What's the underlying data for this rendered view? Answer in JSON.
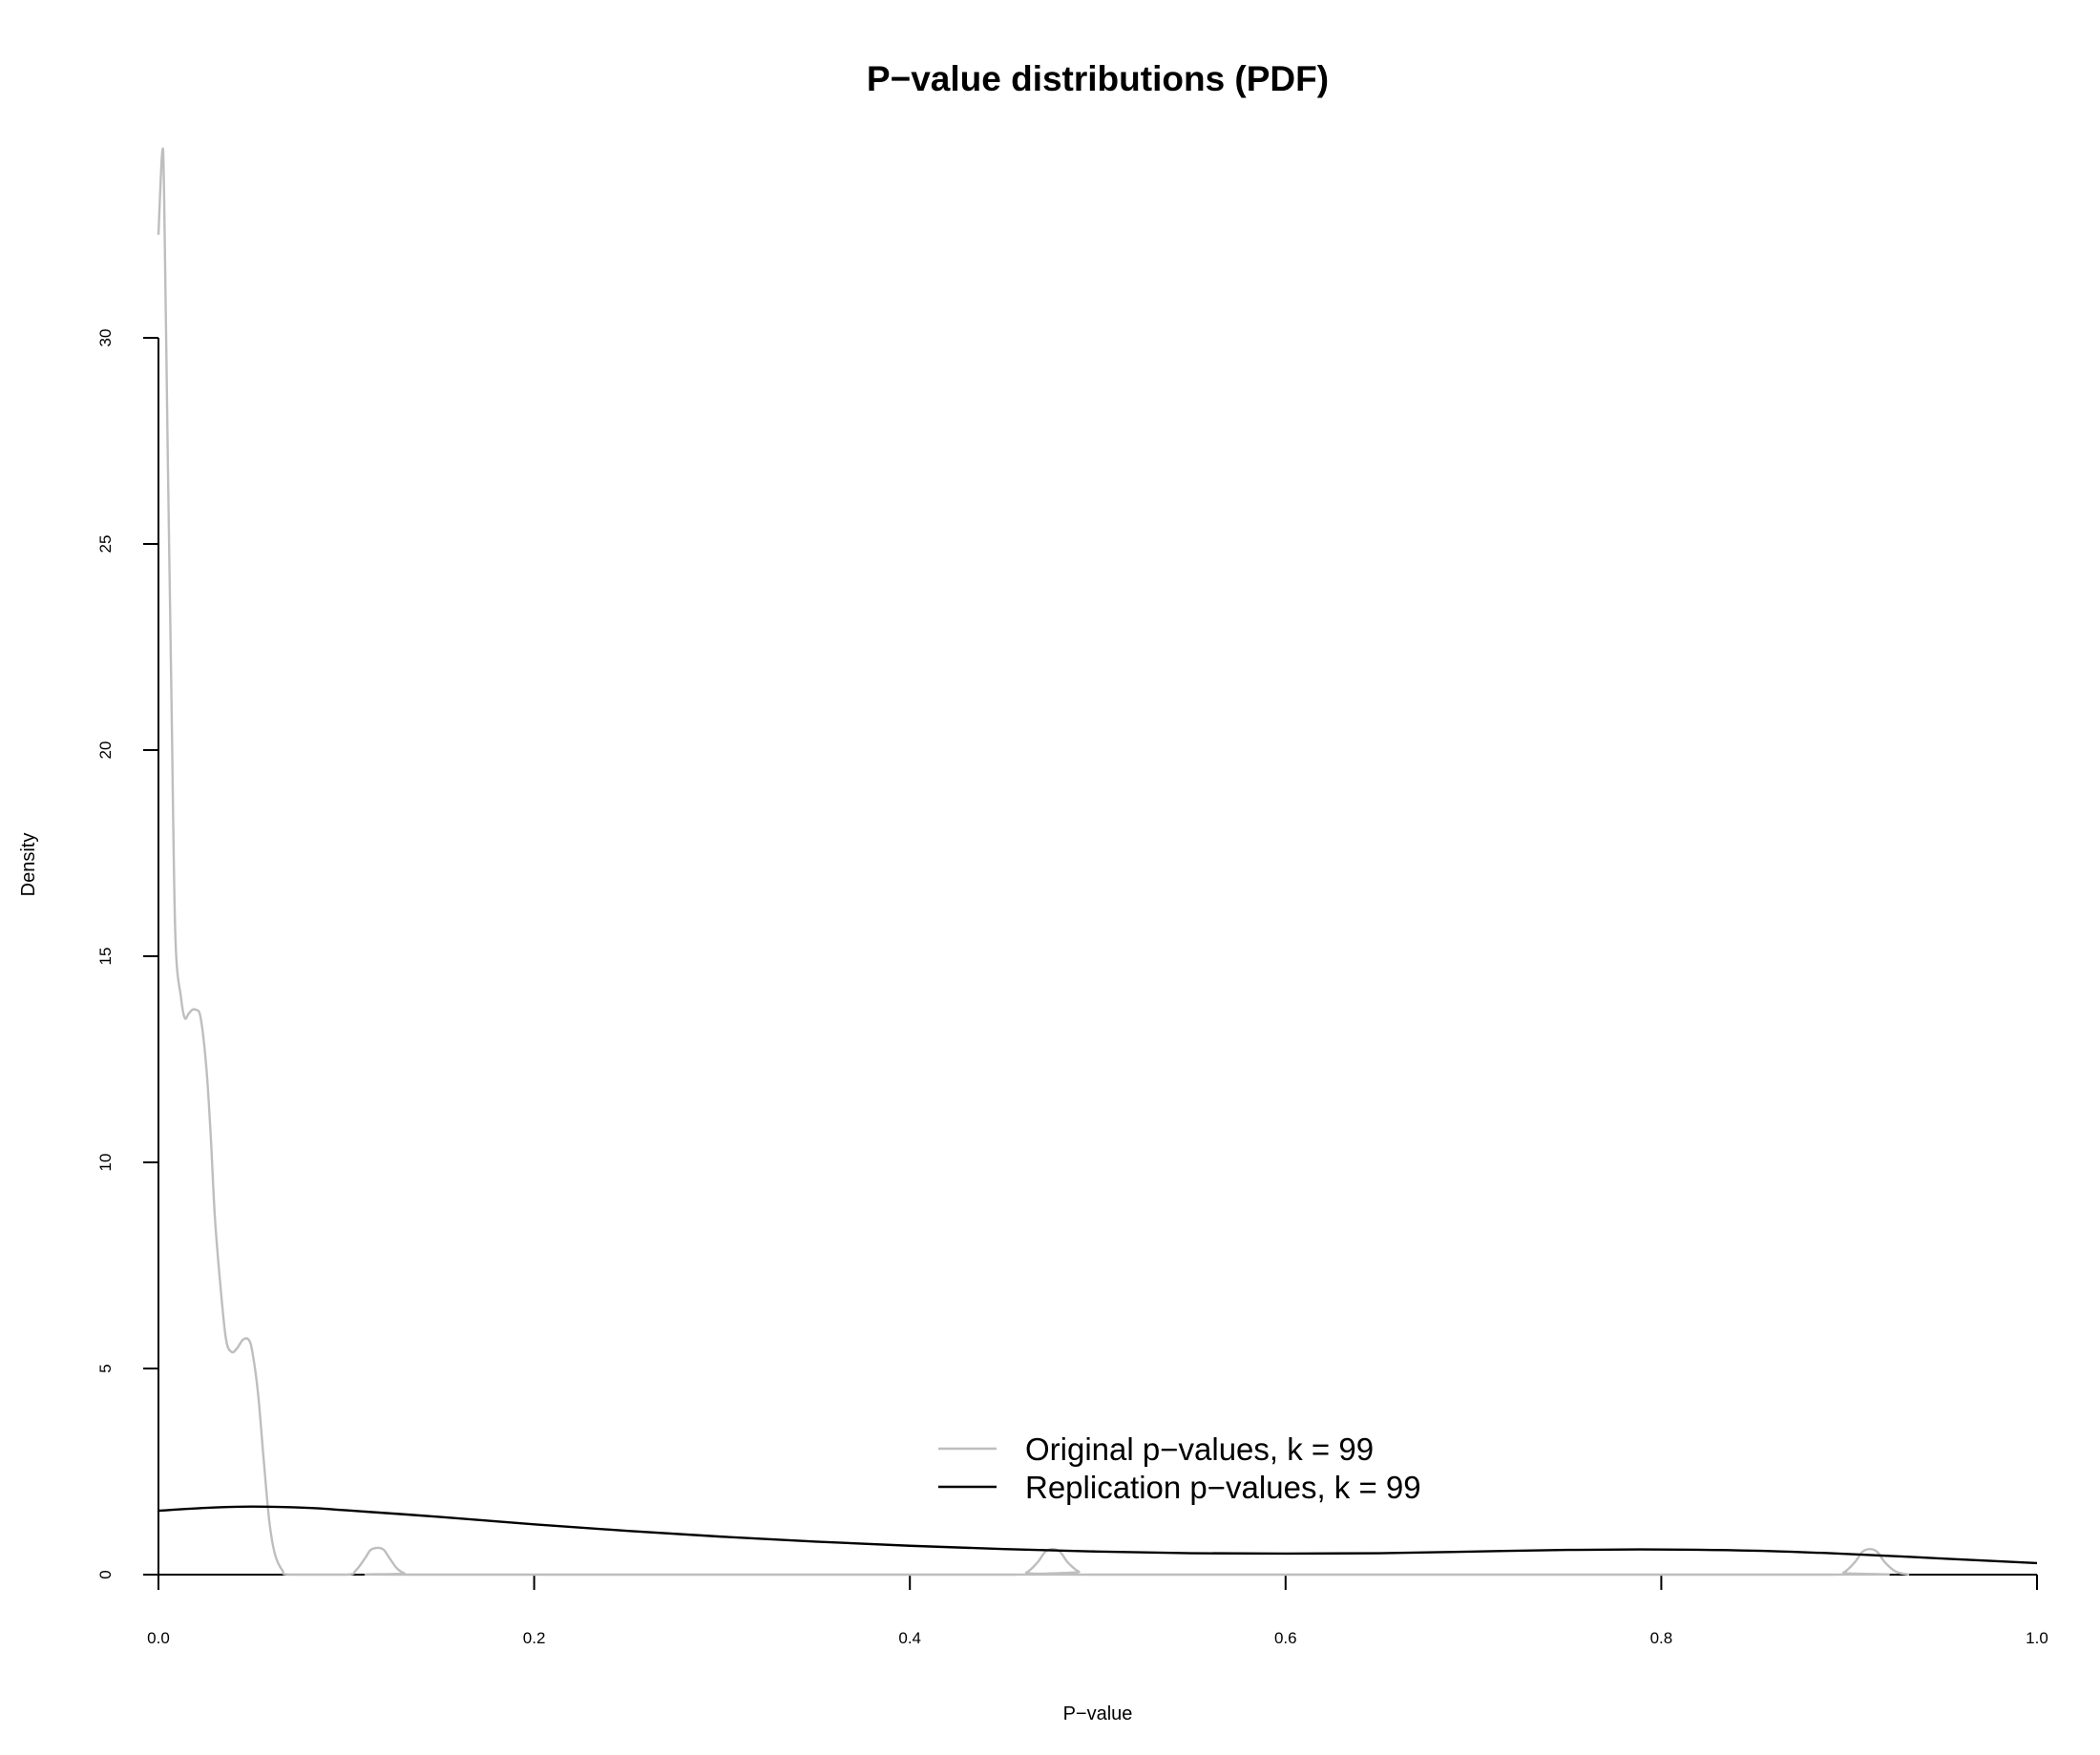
{
  "chart_data": {
    "type": "line",
    "title": "P−value distributions (PDF)",
    "xlabel": "P−value",
    "ylabel": "Density",
    "xlim": [
      0,
      1
    ],
    "ylim": [
      0,
      34.8
    ],
    "x_ticks": [
      0.0,
      0.2,
      0.4,
      0.6,
      0.8,
      1.0
    ],
    "x_tick_labels": [
      "0.0",
      "0.2",
      "0.4",
      "0.6",
      "0.8",
      "1.0"
    ],
    "y_ticks": [
      0,
      5,
      10,
      15,
      20,
      25,
      30
    ],
    "y_tick_labels": [
      "0",
      "5",
      "10",
      "15",
      "20",
      "25",
      "30"
    ],
    "grid": false,
    "legend_position": "bottom-center",
    "series": [
      {
        "name": "Original p−values, k =  99",
        "color": "#bebebe",
        "x": [
          0.0,
          0.002,
          0.003,
          0.005,
          0.007,
          0.009,
          0.012,
          0.014,
          0.016,
          0.018,
          0.02,
          0.022,
          0.024,
          0.026,
          0.028,
          0.03,
          0.033,
          0.036,
          0.039,
          0.042,
          0.045,
          0.048,
          0.05,
          0.053,
          0.056,
          0.059,
          0.062,
          0.066,
          0.07,
          0.1,
          0.105,
          0.11,
          0.113,
          0.117,
          0.12,
          0.123,
          0.127,
          0.131,
          0.135,
          0.455,
          0.462,
          0.468,
          0.472,
          0.476,
          0.48,
          0.484,
          0.49,
          0.496,
          0.89,
          0.897,
          0.903,
          0.907,
          0.911,
          0.915,
          0.919,
          0.925,
          0.932
        ],
        "values": [
          32.5,
          34.5,
          33.5,
          27.0,
          21.0,
          15.5,
          14.0,
          13.5,
          13.6,
          13.7,
          13.7,
          13.6,
          13.0,
          12.0,
          10.5,
          8.7,
          7.0,
          5.7,
          5.4,
          5.5,
          5.7,
          5.7,
          5.4,
          4.4,
          2.8,
          1.3,
          0.5,
          0.1,
          0.0,
          0.0,
          0.1,
          0.4,
          0.6,
          0.65,
          0.6,
          0.4,
          0.15,
          0.03,
          0.0,
          0.0,
          0.05,
          0.3,
          0.55,
          0.62,
          0.55,
          0.3,
          0.07,
          0.0,
          0.0,
          0.05,
          0.3,
          0.55,
          0.62,
          0.55,
          0.3,
          0.07,
          0.0
        ]
      },
      {
        "name": "Replication p−values, k =  99",
        "color": "#000000",
        "x": [
          0.0,
          0.025,
          0.05,
          0.08,
          0.1,
          0.15,
          0.2,
          0.25,
          0.3,
          0.35,
          0.4,
          0.45,
          0.5,
          0.55,
          0.6,
          0.65,
          0.7,
          0.75,
          0.8,
          0.85,
          0.9,
          0.95,
          1.0
        ],
        "values": [
          1.55,
          1.62,
          1.65,
          1.62,
          1.56,
          1.4,
          1.22,
          1.06,
          0.92,
          0.8,
          0.7,
          0.62,
          0.56,
          0.52,
          0.51,
          0.52,
          0.56,
          0.6,
          0.61,
          0.58,
          0.5,
          0.39,
          0.28
        ]
      }
    ]
  }
}
